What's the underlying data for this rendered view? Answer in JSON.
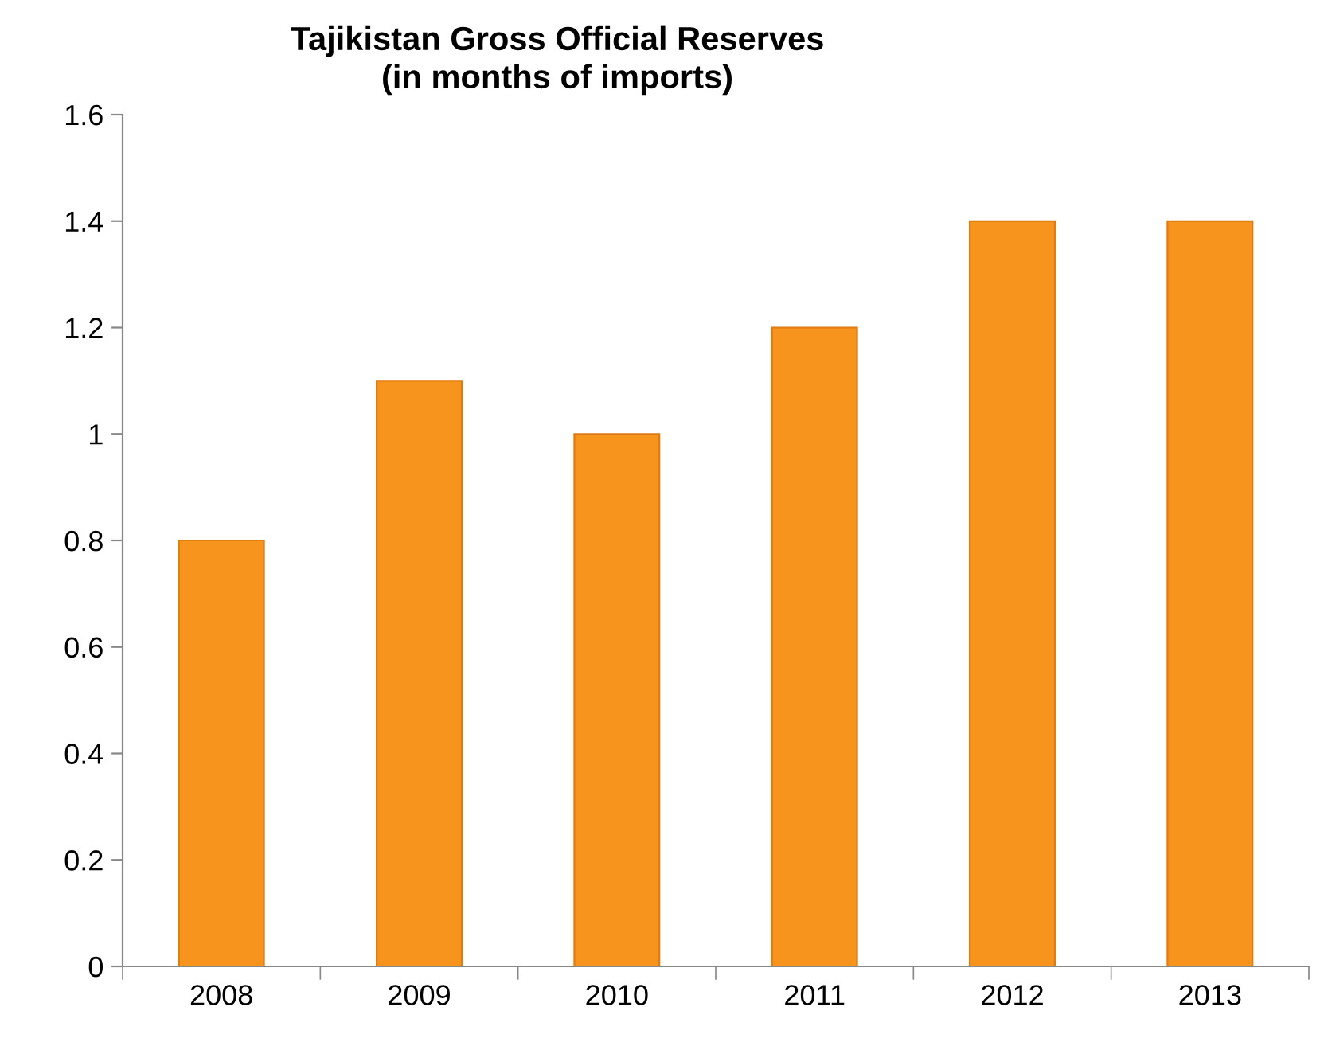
{
  "chart_data": {
    "type": "bar",
    "title": "Tajikistan Gross Official Reserves\n(in months of imports)",
    "categories": [
      "2008",
      "2009",
      "2010",
      "2011",
      "2012",
      "2013"
    ],
    "values": [
      0.8,
      1.1,
      1.0,
      1.2,
      1.4,
      1.4
    ],
    "color": "#f7941d",
    "ylim": [
      0,
      1.6
    ],
    "yticks": [
      0,
      {
        "value": 0.2,
        "label": "0.2"
      },
      {
        "value": 0.4,
        "label": "0.4"
      },
      {
        "value": 0.6,
        "label": "0.6"
      },
      {
        "value": 0.8,
        "label": "0.8"
      },
      1,
      {
        "value": 1.2,
        "label": "1.2"
      },
      {
        "value": 1.4,
        "label": "1.4"
      },
      {
        "value": 1.6,
        "label": "1.6"
      }
    ],
    "grid": false,
    "legend": false
  }
}
